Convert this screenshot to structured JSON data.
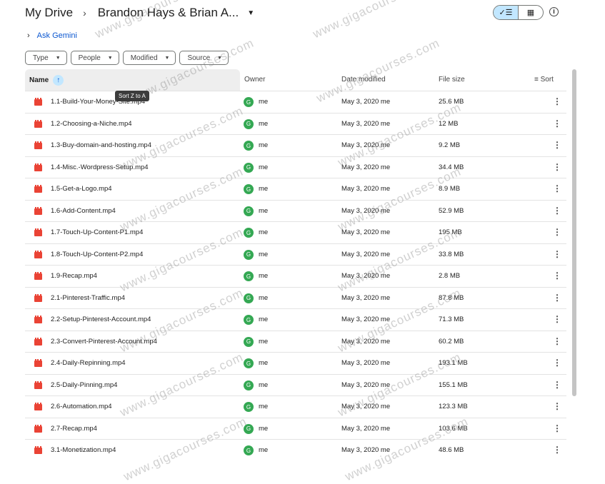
{
  "breadcrumb": {
    "root": "My Drive",
    "current": "Brandon Hays & Brian A..."
  },
  "ask_gemini": "Ask Gemini",
  "filters": [
    "Type",
    "People",
    "Modified",
    "Source"
  ],
  "columns": {
    "name": "Name",
    "owner": "Owner",
    "date": "Date modified",
    "size": "File size",
    "sort": "Sort"
  },
  "tooltip": "Sort Z to A",
  "watermark": "www.gigacourses.com",
  "accent": "#0b57d0",
  "files": [
    {
      "name": "1.1-Build-Your-Money-Site.mp4",
      "owner": "me",
      "date": "May 3, 2020 me",
      "size": "25.6 MB"
    },
    {
      "name": "1.2-Choosing-a-Niche.mp4",
      "owner": "me",
      "date": "May 3, 2020 me",
      "size": "12 MB"
    },
    {
      "name": "1.3-Buy-domain-and-hosting.mp4",
      "owner": "me",
      "date": "May 3, 2020 me",
      "size": "9.2 MB"
    },
    {
      "name": "1.4-Misc.-Wordpress-Setup.mp4",
      "owner": "me",
      "date": "May 3, 2020 me",
      "size": "34.4 MB"
    },
    {
      "name": "1.5-Get-a-Logo.mp4",
      "owner": "me",
      "date": "May 3, 2020 me",
      "size": "8.9 MB"
    },
    {
      "name": "1.6-Add-Content.mp4",
      "owner": "me",
      "date": "May 3, 2020 me",
      "size": "52.9 MB"
    },
    {
      "name": "1.7-Touch-Up-Content-P1.mp4",
      "owner": "me",
      "date": "May 3, 2020 me",
      "size": "195 MB"
    },
    {
      "name": "1.8-Touch-Up-Content-P2.mp4",
      "owner": "me",
      "date": "May 3, 2020 me",
      "size": "33.8 MB"
    },
    {
      "name": "1.9-Recap.mp4",
      "owner": "me",
      "date": "May 3, 2020 me",
      "size": "2.8 MB"
    },
    {
      "name": "2.1-Pinterest-Traffic.mp4",
      "owner": "me",
      "date": "May 3, 2020 me",
      "size": "87.8 MB"
    },
    {
      "name": "2.2-Setup-Pinterest-Account.mp4",
      "owner": "me",
      "date": "May 3, 2020 me",
      "size": "71.3 MB"
    },
    {
      "name": "2.3-Convert-Pinterest-Account.mp4",
      "owner": "me",
      "date": "May 3, 2020 me",
      "size": "60.2 MB"
    },
    {
      "name": "2.4-Daily-Repinning.mp4",
      "owner": "me",
      "date": "May 3, 2020 me",
      "size": "193.1 MB"
    },
    {
      "name": "2.5-Daily-Pinning.mp4",
      "owner": "me",
      "date": "May 3, 2020 me",
      "size": "155.1 MB"
    },
    {
      "name": "2.6-Automation.mp4",
      "owner": "me",
      "date": "May 3, 2020 me",
      "size": "123.3 MB"
    },
    {
      "name": "2.7-Recap.mp4",
      "owner": "me",
      "date": "May 3, 2020 me",
      "size": "103.6 MB"
    },
    {
      "name": "3.1-Monetization.mp4",
      "owner": "me",
      "date": "May 3, 2020 me",
      "size": "48.6 MB"
    }
  ]
}
